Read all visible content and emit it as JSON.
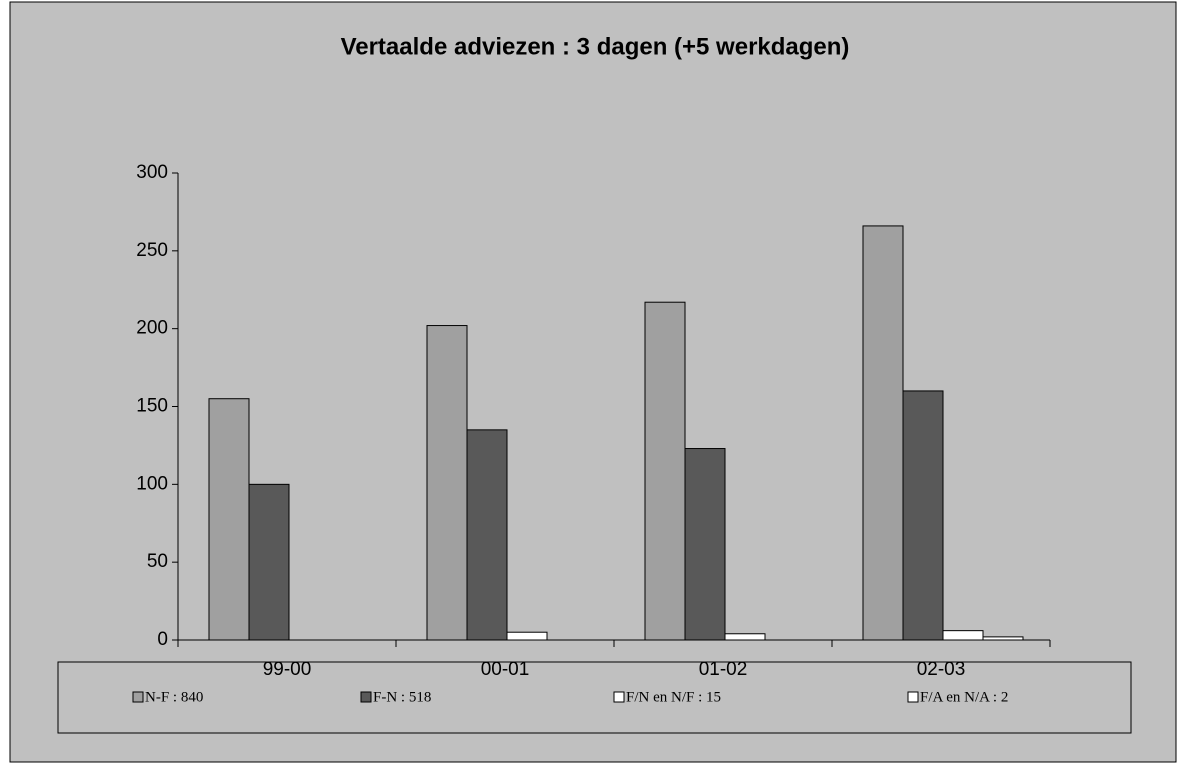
{
  "chart_data": {
    "type": "bar",
    "title": "Vertaalde adviezen : 3 dagen (+5 werkdagen)",
    "categories": [
      "99-00",
      "00-01",
      "01-02",
      "02-03"
    ],
    "series": [
      {
        "name": "N-F : 840",
        "color": "#a0a0a0",
        "values": [
          155,
          202,
          217,
          266
        ]
      },
      {
        "name": "F-N : 518",
        "color": "#595959",
        "values": [
          100,
          135,
          123,
          160
        ]
      },
      {
        "name": "F/N en N/F : 15",
        "color": "#ffffff",
        "values": [
          0,
          5,
          4,
          6
        ]
      },
      {
        "name": "F/A en N/A : 2",
        "color": "#ffffff",
        "values": [
          0,
          0,
          0,
          2
        ]
      }
    ],
    "ylim": [
      0,
      300
    ],
    "yticks": [
      0,
      50,
      100,
      150,
      200,
      250,
      300
    ],
    "grid": false,
    "legend": "bottom"
  }
}
